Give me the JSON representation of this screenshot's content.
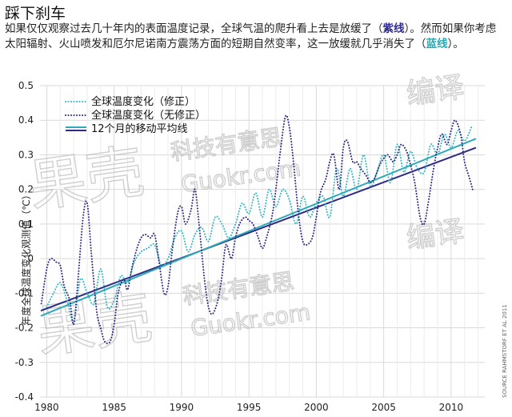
{
  "header": {
    "title": "踩下刹车",
    "para1": "如果仅仅观察过去几十年内的表面温度记录，全球气温的爬升看上去是放缓了（",
    "purple_label": "紫线",
    "para2": "）。然而如果你考虑太阳辐射、火山喷发和厄尔尼诺南方震荡方面的短期自然变率，这一放缓就几乎消失了（",
    "teal_label": "蓝线",
    "para3": "）。"
  },
  "source": "SOURCE RAHMSTORF ET AL 2011",
  "watermark": {
    "brand": "果壳",
    "tagline": "科技有意思",
    "url": "Guokr.com",
    "edit": "编译"
  },
  "colors": {
    "corrected": "#35b6c2",
    "uncorrected": "#2d2b86",
    "trend_teal": "#2fa9b8",
    "trend_purple": "#2d2b86",
    "grid": "#d9d9d9"
  },
  "chart_data": {
    "type": "line",
    "title": "",
    "xlabel": "",
    "ylabel": "年度全球温度变化观测值（℃）",
    "xlim": [
      1979.5,
      2012.5
    ],
    "ylim": [
      -0.4,
      0.5
    ],
    "x_ticks": [
      "1980",
      "1985",
      "1990",
      "1995",
      "2000",
      "2005",
      "2010"
    ],
    "y_ticks": [
      "0.5",
      "0.4",
      "0.3",
      "0.2",
      "0.1",
      "0",
      "-0.1",
      "-0.2",
      "-0.3",
      "-0.4"
    ],
    "grid": true,
    "legend_position": "top-left",
    "series": [
      {
        "name": "全球温度变化（修正）",
        "style": "dotted",
        "x": [
          1980.0,
          1980.5,
          1981.0,
          1981.5,
          1982.0,
          1982.5,
          1983.0,
          1983.5,
          1984.0,
          1984.5,
          1985.0,
          1985.5,
          1986.0,
          1986.5,
          1987.0,
          1987.5,
          1988.0,
          1988.5,
          1989.0,
          1989.5,
          1990.0,
          1990.5,
          1991.0,
          1991.5,
          1992.0,
          1992.5,
          1993.0,
          1993.5,
          1994.0,
          1994.5,
          1995.0,
          1995.5,
          1996.0,
          1996.5,
          1997.0,
          1997.5,
          1998.0,
          1998.5,
          1999.0,
          1999.5,
          2000.0,
          2000.5,
          2001.0,
          2001.5,
          2002.0,
          2002.5,
          2003.0,
          2003.5,
          2004.0,
          2004.5,
          2005.0,
          2005.5,
          2006.0,
          2006.5,
          2007.0,
          2007.5,
          2008.0,
          2008.5,
          2009.0,
          2009.5,
          2010.0,
          2010.5,
          2011.0,
          2011.5
        ],
        "y": [
          -0.14,
          -0.1,
          -0.07,
          -0.12,
          -0.18,
          -0.06,
          -0.1,
          -0.13,
          -0.03,
          -0.14,
          -0.12,
          -0.05,
          -0.07,
          -0.01,
          0.02,
          0.03,
          0.04,
          -0.02,
          0.0,
          0.06,
          0.08,
          0.02,
          0.07,
          0.09,
          0.05,
          0.12,
          0.1,
          0.06,
          0.1,
          0.16,
          0.13,
          0.19,
          0.12,
          0.2,
          0.15,
          0.2,
          0.17,
          0.1,
          0.18,
          0.12,
          0.16,
          0.18,
          0.12,
          0.26,
          0.18,
          0.26,
          0.2,
          0.3,
          0.21,
          0.25,
          0.3,
          0.22,
          0.33,
          0.25,
          0.31,
          0.26,
          0.25,
          0.33,
          0.3,
          0.36,
          0.32,
          0.37,
          0.34,
          0.38
        ]
      },
      {
        "name": "全球温度变化（无修正）",
        "style": "dotted",
        "x": [
          1979.6,
          1980.0,
          1980.3,
          1980.7,
          1981.0,
          1981.3,
          1981.7,
          1982.0,
          1982.3,
          1982.7,
          1983.0,
          1983.3,
          1983.7,
          1984.0,
          1984.3,
          1984.7,
          1985.0,
          1985.3,
          1985.7,
          1986.0,
          1986.3,
          1986.7,
          1987.0,
          1987.3,
          1987.7,
          1988.0,
          1988.3,
          1988.7,
          1989.0,
          1989.3,
          1989.7,
          1990.0,
          1990.3,
          1990.7,
          1991.0,
          1991.3,
          1991.7,
          1992.0,
          1992.3,
          1992.7,
          1993.0,
          1993.3,
          1993.7,
          1994.0,
          1994.3,
          1994.7,
          1995.0,
          1995.3,
          1995.7,
          1996.0,
          1996.3,
          1996.7,
          1997.0,
          1997.3,
          1997.7,
          1998.0,
          1998.3,
          1998.7,
          1999.0,
          1999.3,
          1999.7,
          2000.0,
          2000.3,
          2000.7,
          2001.0,
          2001.3,
          2001.7,
          2002.0,
          2002.3,
          2002.7,
          2003.0,
          2003.3,
          2003.7,
          2004.0,
          2004.3,
          2004.7,
          2005.0,
          2005.3,
          2005.7,
          2006.0,
          2006.3,
          2006.7,
          2007.0,
          2007.3,
          2007.7,
          2008.0,
          2008.3,
          2008.7,
          2009.0,
          2009.3,
          2009.7,
          2010.0,
          2010.3,
          2010.7,
          2011.0,
          2011.3,
          2011.6
        ],
        "y": [
          -0.13,
          -0.03,
          0.0,
          -0.01,
          -0.02,
          -0.08,
          -0.12,
          -0.19,
          -0.07,
          0.12,
          0.16,
          0.02,
          -0.15,
          -0.2,
          -0.24,
          -0.24,
          -0.19,
          -0.1,
          -0.06,
          -0.09,
          -0.03,
          0.03,
          0.06,
          0.07,
          0.06,
          0.07,
          0.0,
          -0.1,
          -0.08,
          0.02,
          0.13,
          0.15,
          0.1,
          0.14,
          0.2,
          0.1,
          -0.06,
          -0.14,
          -0.16,
          -0.12,
          -0.05,
          0.04,
          0.0,
          0.06,
          0.1,
          0.12,
          0.11,
          0.1,
          0.06,
          0.03,
          0.06,
          0.12,
          0.2,
          0.3,
          0.41,
          0.38,
          0.28,
          0.12,
          0.05,
          0.04,
          0.06,
          0.12,
          0.19,
          0.23,
          0.28,
          0.3,
          0.2,
          0.32,
          0.34,
          0.28,
          0.28,
          0.26,
          0.24,
          0.22,
          0.23,
          0.27,
          0.29,
          0.3,
          0.28,
          0.3,
          0.33,
          0.31,
          0.27,
          0.22,
          0.12,
          0.1,
          0.16,
          0.26,
          0.32,
          0.36,
          0.33,
          0.37,
          0.4,
          0.36,
          0.28,
          0.24,
          0.2
        ]
      },
      {
        "name": "12个月的移动平均线",
        "style": "solid",
        "x": [
          1979.6,
          2011.8
        ],
        "y": [
          -0.165,
          0.346
        ]
      },
      {
        "name": "",
        "style": "solid",
        "x": [
          1979.6,
          2011.8
        ],
        "y": [
          -0.15,
          0.32
        ]
      }
    ]
  }
}
